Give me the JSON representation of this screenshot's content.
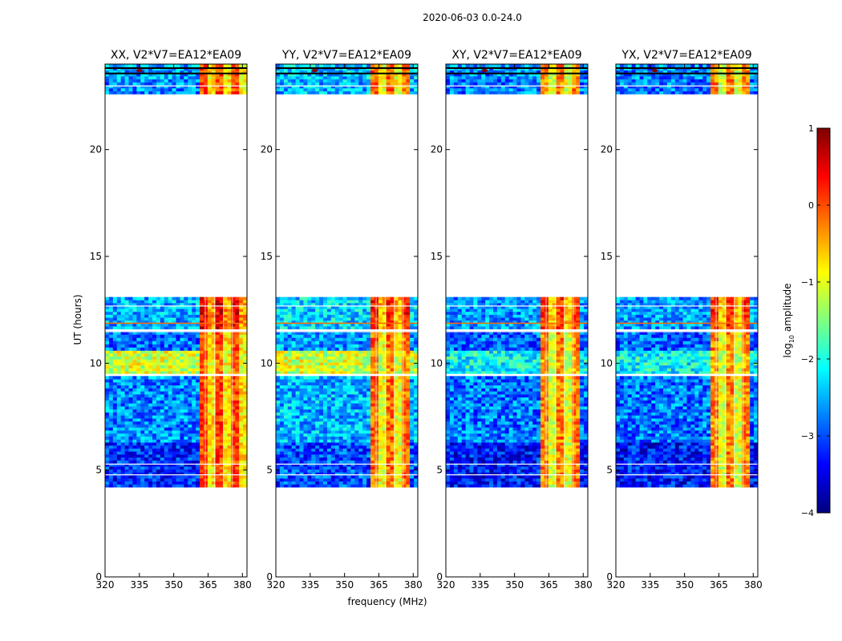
{
  "figure": {
    "suptitle": "2020-06-03 0.0-24.0",
    "xlabel": "frequency (MHz)",
    "ylabel": "UT (hours)"
  },
  "colorbar": {
    "label": "log$_{10}$ amplitude",
    "label_main": "log",
    "label_sub": "10",
    "label_rest": " amplitude",
    "range": [
      -4,
      1
    ],
    "ticks": [
      1,
      0,
      -1,
      -2,
      -3,
      -4
    ],
    "tick_labels": [
      "1",
      "0",
      "−1",
      "−2",
      "−3",
      "−4"
    ],
    "colormap": "jet",
    "colors": [
      "#00007f",
      "#0000ff",
      "#007fff",
      "#00ffff",
      "#7fff7f",
      "#ffff00",
      "#ff7f00",
      "#ff0000",
      "#7f0000"
    ]
  },
  "chart_data": [
    {
      "type": "heatmap",
      "title": "XX, V2*V7=EA12*EA09",
      "xlim": [
        320,
        382
      ],
      "ylim": [
        0,
        24
      ],
      "xticks": [
        320,
        335,
        350,
        365,
        380
      ],
      "yticks": [
        0,
        5,
        10,
        15,
        20
      ],
      "xtick_labels": [
        "320",
        "335",
        "350",
        "365",
        "380"
      ],
      "ytick_labels": [
        "0",
        "5",
        "10",
        "15",
        "20"
      ],
      "rfi_band_mhz": [
        360,
        382
      ],
      "rfi_level": 0.5,
      "background_level": -2.7
    },
    {
      "type": "heatmap",
      "title": "YY, V2*V7=EA12*EA09",
      "xlim": [
        320,
        382
      ],
      "ylim": [
        0,
        24
      ],
      "xticks": [
        320,
        335,
        350,
        365,
        380
      ],
      "yticks": [
        0,
        5,
        10,
        15,
        20
      ],
      "xtick_labels": [
        "320",
        "335",
        "350",
        "365",
        "380"
      ],
      "ytick_labels": [
        "0",
        "5",
        "10",
        "15",
        "20"
      ],
      "rfi_band_mhz": [
        360,
        378
      ],
      "rfi_level": 0.3,
      "background_level": -2.5
    },
    {
      "type": "heatmap",
      "title": "XY, V2*V7=EA12*EA09",
      "xlim": [
        320,
        382
      ],
      "ylim": [
        0,
        24
      ],
      "xticks": [
        320,
        335,
        350,
        365,
        380
      ],
      "yticks": [
        0,
        5,
        10,
        15,
        20
      ],
      "xtick_labels": [
        "320",
        "335",
        "350",
        "365",
        "380"
      ],
      "ytick_labels": [
        "0",
        "5",
        "10",
        "15",
        "20"
      ],
      "rfi_band_mhz": [
        360,
        378
      ],
      "rfi_level": 0.2,
      "background_level": -2.8
    },
    {
      "type": "heatmap",
      "title": "YX, V2*V7=EA12*EA09",
      "xlim": [
        320,
        382
      ],
      "ylim": [
        0,
        24
      ],
      "xticks": [
        320,
        335,
        350,
        365,
        380
      ],
      "yticks": [
        0,
        5,
        10,
        15,
        20
      ],
      "xtick_labels": [
        "320",
        "335",
        "350",
        "365",
        "380"
      ],
      "ytick_labels": [
        "0",
        "5",
        "10",
        "15",
        "20"
      ],
      "rfi_band_mhz": [
        360,
        378
      ],
      "rfi_level": 0.2,
      "background_level": -2.8
    }
  ],
  "time_blocks_hours": [
    {
      "from": 4.2,
      "to": 6.3,
      "kind": "quiet"
    },
    {
      "from": 6.3,
      "to": 9.4,
      "kind": "noisy"
    },
    {
      "from": 9.5,
      "to": 10.6,
      "kind": "bright"
    },
    {
      "from": 10.6,
      "to": 11.5,
      "kind": "medium"
    },
    {
      "from": 11.6,
      "to": 13.1,
      "kind": "mixed"
    },
    {
      "from": 22.6,
      "to": 23.3,
      "kind": "noisy"
    },
    {
      "from": 23.3,
      "to": 24.0,
      "kind": "striped"
    }
  ]
}
